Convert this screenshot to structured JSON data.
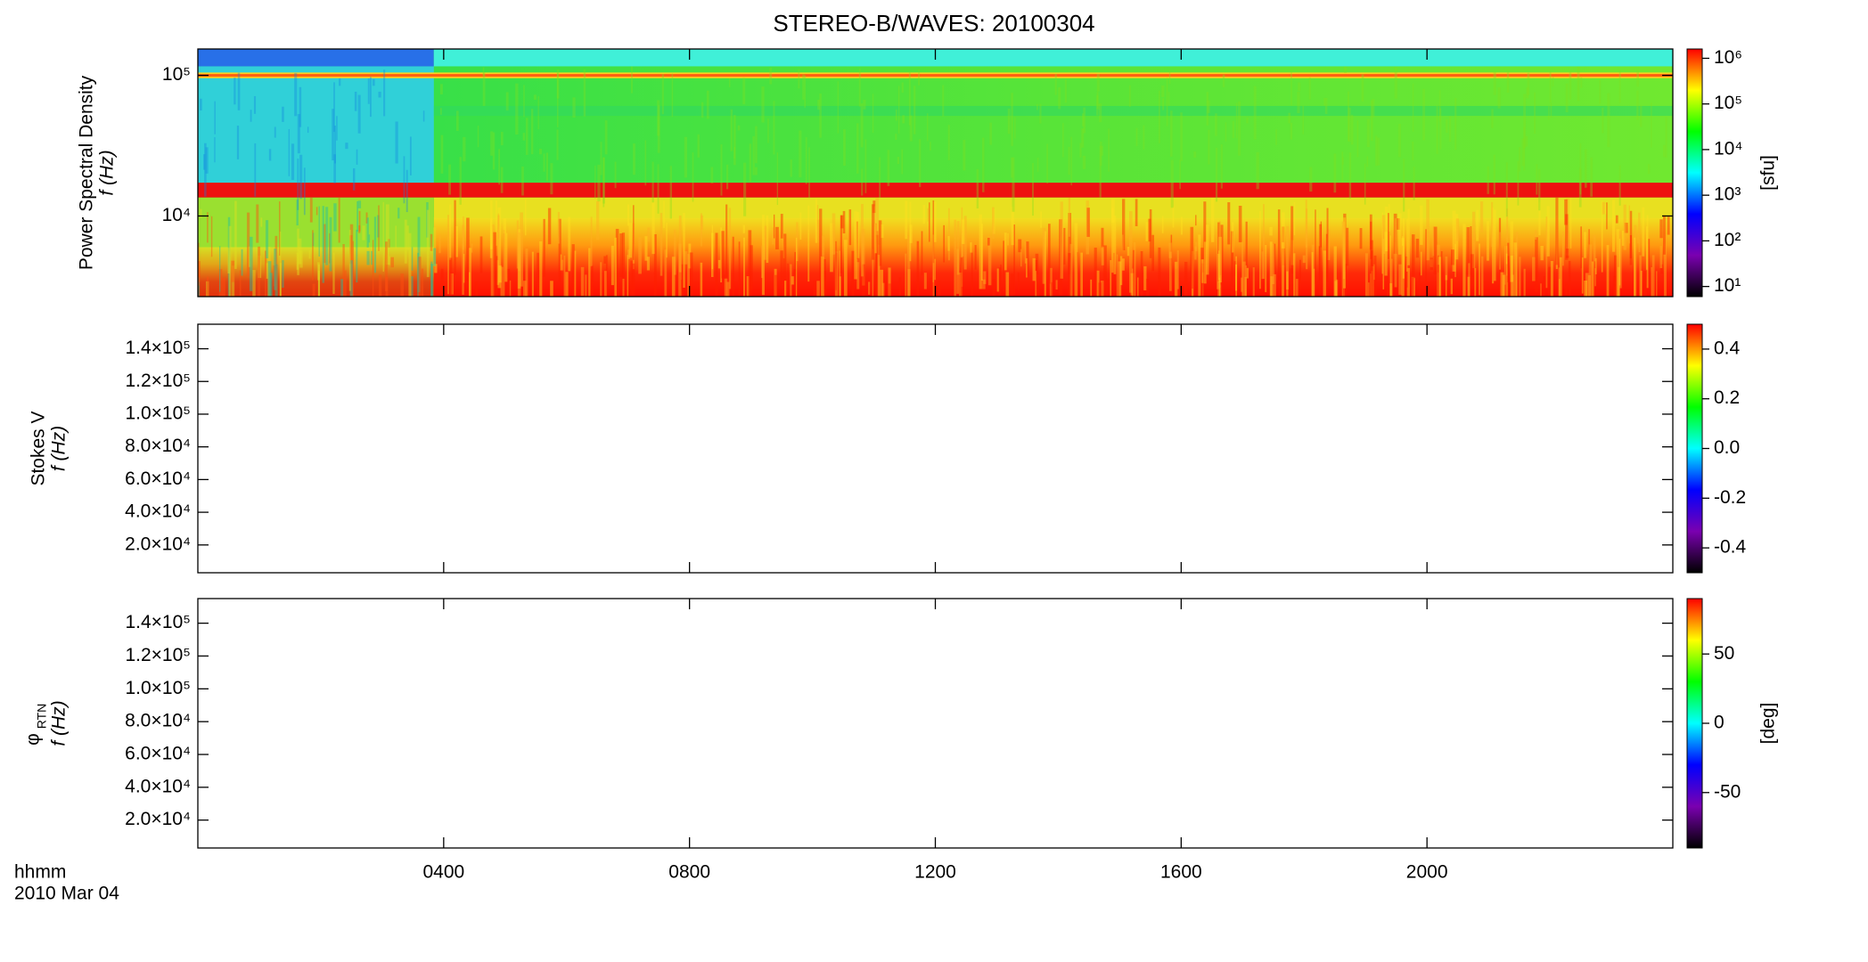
{
  "colormap": [
    "#000000",
    "#7a00b0",
    "#0000ff",
    "#00ffff",
    "#00ff00",
    "#ffff00",
    "#ff0000"
  ],
  "chart_data": [
    {
      "type": "spectrogram",
      "title": "STEREO-B/WAVES: 20100304",
      "filled": true,
      "ylabel": "Power Spectral Density",
      "ylabel2": "f (Hz)",
      "yscale": "log",
      "ylim": [
        2670,
        154000
      ],
      "yticks": [
        {
          "value": 10000,
          "label": "10⁴"
        },
        {
          "value": 100000,
          "label": "10⁵"
        }
      ],
      "colorbar_label": "[sfu]",
      "cscale": "log",
      "clim": [
        6,
        1600000
      ],
      "cticks": [
        {
          "value": 10,
          "label": "10¹"
        },
        {
          "value": 100,
          "label": "10²"
        },
        {
          "value": 1000,
          "label": "10³"
        },
        {
          "value": 10000,
          "label": "10⁴"
        },
        {
          "value": 100000,
          "label": "10⁵"
        },
        {
          "value": 1000000,
          "label": "10⁶"
        }
      ]
    },
    {
      "type": "spectrogram",
      "filled": false,
      "ylabel": "Stokes V",
      "ylabel2": "f (Hz)",
      "yscale": "linear",
      "ylim": [
        3000,
        155000
      ],
      "yticks": [
        {
          "value": 20000,
          "label": "2.0×10⁴"
        },
        {
          "value": 40000,
          "label": "4.0×10⁴"
        },
        {
          "value": 60000,
          "label": "6.0×10⁴"
        },
        {
          "value": 80000,
          "label": "8.0×10⁴"
        },
        {
          "value": 100000,
          "label": "1.0×10⁵"
        },
        {
          "value": 120000,
          "label": "1.2×10⁵"
        },
        {
          "value": 140000,
          "label": "1.4×10⁵"
        }
      ],
      "cscale": "linear",
      "clim": [
        -0.5,
        0.5
      ],
      "cticks": [
        -0.4,
        -0.2,
        {
          "value": 0,
          "label": "0.0"
        },
        0.2,
        0.4
      ]
    },
    {
      "type": "spectrogram",
      "filled": false,
      "ylabel": "φ",
      "ylabel_sub": "RTN",
      "ylabel2": "f (Hz)",
      "yscale": "linear",
      "ylim": [
        3000,
        155000
      ],
      "yticks": [
        {
          "value": 20000,
          "label": "2.0×10⁴"
        },
        {
          "value": 40000,
          "label": "4.0×10⁴"
        },
        {
          "value": 60000,
          "label": "6.0×10⁴"
        },
        {
          "value": 80000,
          "label": "8.0×10⁴"
        },
        {
          "value": 100000,
          "label": "1.0×10⁵"
        },
        {
          "value": 120000,
          "label": "1.2×10⁵"
        },
        {
          "value": 140000,
          "label": "1.4×10⁵"
        }
      ],
      "colorbar_label": "[deg]",
      "cscale": "linear",
      "clim": [
        -90,
        90
      ],
      "cticks": [
        -50,
        0,
        50
      ],
      "xlabel": "hhmm",
      "date": "2010 Mar 04",
      "xlim": [
        0,
        24
      ],
      "xticks": [
        {
          "value": 4,
          "label": "0400"
        },
        {
          "value": 8,
          "label": "0800"
        },
        {
          "value": 12,
          "label": "1200"
        },
        {
          "value": 16,
          "label": "1600"
        },
        {
          "value": 20,
          "label": "2000"
        }
      ]
    }
  ]
}
